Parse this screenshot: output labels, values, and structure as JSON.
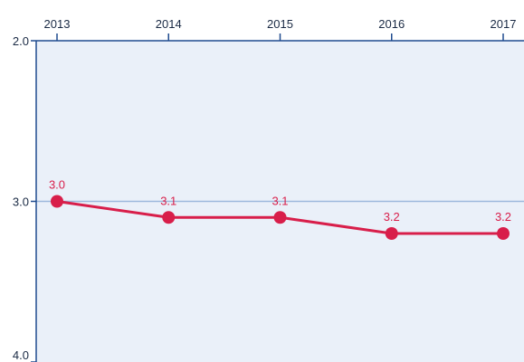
{
  "chart_data": {
    "type": "line",
    "title": "",
    "xlabel": "",
    "ylabel": "",
    "x": [
      "2013",
      "2014",
      "2015",
      "2016",
      "2017"
    ],
    "series": [
      {
        "values": [
          3.0,
          3.1,
          3.1,
          3.2,
          3.2
        ],
        "labels": [
          "3.0",
          "3.1",
          "3.1",
          "3.2",
          "3.2"
        ]
      }
    ],
    "ylim": [
      2.0,
      4.0
    ],
    "y_inverted": true,
    "yticks": [
      "2.0",
      "3.0",
      "4.0"
    ],
    "x_axis_position": "top",
    "grid": false,
    "reference_line": 3.0,
    "colors": {
      "series": "#d81e4a",
      "plot_background": "#eaf0f9",
      "axis": "#1f4b8f",
      "reference_line": "#9db8dc"
    }
  }
}
